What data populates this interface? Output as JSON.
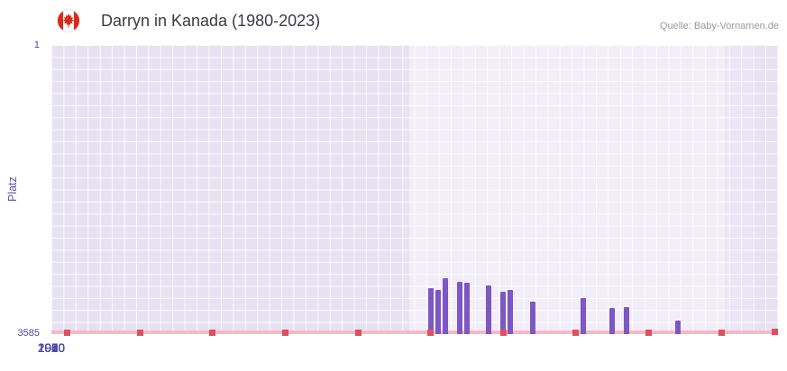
{
  "header": {
    "title": "Darryn in Kanada (1980-2023)",
    "source": "Quelle: Baby-Vornamen.de",
    "flag": "canada-flag-icon"
  },
  "axes": {
    "y_label": "Platz",
    "y_top_tick": "1",
    "y_bottom_tick": "3585"
  },
  "chart_data": {
    "type": "bar",
    "title": "Darryn in Kanada (1980-2023)",
    "xlabel": "",
    "ylabel": "Platz",
    "y_axis": {
      "best": 1,
      "worst": 3585,
      "inverted": true,
      "top_tick_label": "1",
      "bottom_tick_label": "3585"
    },
    "x_range": [
      1927.8,
      2027.8
    ],
    "x_ticks": [
      1930,
      1940,
      1950,
      1960,
      1970,
      1980,
      1990,
      2000,
      2010,
      2020
    ],
    "grid": true,
    "legend_position": "none",
    "bars": [
      {
        "year": 1980,
        "rank": 3020
      },
      {
        "year": 1981,
        "rank": 3035
      },
      {
        "year": 1982,
        "rank": 2895
      },
      {
        "year": 1984,
        "rank": 2940
      },
      {
        "year": 1985,
        "rank": 2950
      },
      {
        "year": 1988,
        "rank": 2985
      },
      {
        "year": 1990,
        "rank": 3055
      },
      {
        "year": 1991,
        "rank": 3040
      },
      {
        "year": 1994,
        "rank": 3185
      },
      {
        "year": 2001,
        "rank": 3135
      },
      {
        "year": 2005,
        "rank": 3265
      },
      {
        "year": 2007,
        "rank": 3250
      },
      {
        "year": 2014,
        "rank": 3420
      }
    ],
    "unranked_marker_years": [
      1930,
      1940,
      1950,
      1960,
      1970,
      1980,
      1990,
      2000,
      2010,
      2020
    ],
    "highlight_bands": [
      {
        "from": 1977,
        "to": 2020.5,
        "color": "#f2eef9"
      },
      {
        "from": 2020.5,
        "to": 2024.2,
        "color": "#ebe6f5"
      }
    ]
  },
  "colors": {
    "bar": "#7d57c3",
    "plot_bg": "#e7e2f2",
    "grid_line": "#ffffff",
    "baseline_strip": "#f2bac7",
    "marker_red": "#e04f60",
    "axis_text": "#4c4b9e",
    "title_text": "#3a3a42",
    "source_text": "#9a98a3",
    "flag_red": "#d52b1e"
  }
}
